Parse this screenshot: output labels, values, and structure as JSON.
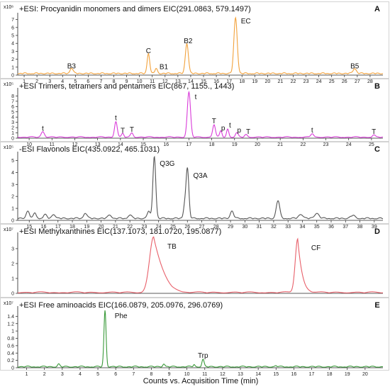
{
  "figure": {
    "xlabel": "Counts vs. Acquisition Time (min)"
  },
  "chart_data": [
    {
      "id": "A",
      "type": "line",
      "panel_letter": "A",
      "title": "+ESI: Procyanidin monomers and dimers   EIC(291.0863, 579.1497)",
      "exp_label": "x10⁶",
      "color": "#f2a23c",
      "xlim": [
        0.5,
        29
      ],
      "x_ticks": [
        1,
        2,
        3,
        4,
        5,
        6,
        7,
        8,
        9,
        10,
        11,
        12,
        13,
        14,
        15,
        16,
        17,
        18,
        19,
        20,
        21,
        22,
        23,
        24,
        25,
        26,
        27,
        28
      ],
      "ylim": [
        0,
        7.5
      ],
      "y_ticks": [
        0,
        1,
        2,
        3,
        4,
        5,
        6,
        7
      ],
      "baseline": 0.15,
      "peaks": [
        {
          "x": 4.7,
          "y": 0.7,
          "w": 0.12
        },
        {
          "x": 10.7,
          "y": 2.55,
          "w": 0.1
        },
        {
          "x": 11.3,
          "y": 0.6,
          "w": 0.1
        },
        {
          "x": 13.7,
          "y": 3.8,
          "w": 0.12
        },
        {
          "x": 17.5,
          "y": 7.0,
          "w": 0.13
        },
        {
          "x": 26.8,
          "y": 0.65,
          "w": 0.13
        }
      ],
      "annotations": [
        {
          "text": "B3",
          "x": 4.7,
          "y": 0.85
        },
        {
          "text": "C",
          "x": 10.7,
          "y": 2.75
        },
        {
          "text": "B1",
          "x": 11.9,
          "y": 0.75
        },
        {
          "text": "B2",
          "x": 13.8,
          "y": 4.0
        },
        {
          "text": "EC",
          "x": 18.3,
          "y": 6.5
        },
        {
          "text": "B5",
          "x": 26.8,
          "y": 0.85
        }
      ]
    },
    {
      "id": "B",
      "type": "line",
      "panel_letter": "B",
      "title": "+ESI Trimers, tetramers and pentamers EIC(867, 1155., 1443)",
      "exp_label": "x10⁵",
      "color": "#d93cd9",
      "xlim": [
        9.5,
        25.5
      ],
      "x_ticks": [
        10,
        11,
        12,
        13,
        14,
        15,
        16,
        17,
        18,
        19,
        20,
        21,
        22,
        23,
        24,
        25
      ],
      "ylim": [
        0,
        9
      ],
      "y_ticks": [
        0,
        1,
        2,
        3,
        4,
        5,
        6,
        7,
        8
      ],
      "baseline": 0.12,
      "peaks": [
        {
          "x": 10.6,
          "y": 1.1,
          "w": 0.07
        },
        {
          "x": 13.8,
          "y": 3.0,
          "w": 0.06
        },
        {
          "x": 14.1,
          "y": 0.7,
          "w": 0.05
        },
        {
          "x": 14.5,
          "y": 0.8,
          "w": 0.06
        },
        {
          "x": 17.0,
          "y": 8.5,
          "w": 0.07
        },
        {
          "x": 18.1,
          "y": 2.4,
          "w": 0.06
        },
        {
          "x": 18.4,
          "y": 1.2,
          "w": 0.05
        },
        {
          "x": 18.7,
          "y": 1.6,
          "w": 0.05
        },
        {
          "x": 19.1,
          "y": 0.8,
          "w": 0.06
        },
        {
          "x": 19.5,
          "y": 0.5,
          "w": 0.06
        },
        {
          "x": 22.4,
          "y": 0.7,
          "w": 0.06
        },
        {
          "x": 25.1,
          "y": 0.4,
          "w": 0.06
        }
      ],
      "annotations": [
        {
          "text": "t",
          "x": 10.6,
          "y": 1.4
        },
        {
          "text": "t",
          "x": 13.8,
          "y": 3.4
        },
        {
          "text": "T",
          "x": 14.1,
          "y": 1.0
        },
        {
          "text": "T",
          "x": 14.5,
          "y": 1.2
        },
        {
          "text": "t",
          "x": 17.3,
          "y": 7.4
        },
        {
          "text": "T",
          "x": 18.1,
          "y": 2.8
        },
        {
          "text": "p",
          "x": 18.5,
          "y": 1.5
        },
        {
          "text": "t",
          "x": 18.8,
          "y": 2.0
        },
        {
          "text": "p",
          "x": 19.2,
          "y": 1.1
        },
        {
          "text": "T",
          "x": 19.6,
          "y": 0.8
        },
        {
          "text": "t",
          "x": 22.4,
          "y": 1.1
        },
        {
          "text": "T",
          "x": 25.1,
          "y": 0.8
        }
      ]
    },
    {
      "id": "C",
      "type": "line",
      "panel_letter": "C",
      "title": "-ESI Flavonols EIC(435.0922, 465.1031)",
      "exp_label": "x10⁵",
      "color": "#555555",
      "xlim": [
        14.2,
        39.6
      ],
      "x_ticks": [
        15,
        16,
        17,
        18,
        19,
        20,
        21,
        22,
        23,
        24,
        25,
        26,
        27,
        28,
        29,
        30,
        31,
        32,
        33,
        34,
        35,
        36,
        37,
        38,
        39
      ],
      "ylim": [
        0,
        5.5
      ],
      "y_ticks": [
        0,
        1,
        2,
        3,
        4,
        5
      ],
      "baseline": 0.12,
      "peaks": [
        {
          "x": 14.9,
          "y": 0.6,
          "w": 0.12
        },
        {
          "x": 15.4,
          "y": 0.45,
          "w": 0.1
        },
        {
          "x": 16.1,
          "y": 0.3,
          "w": 0.12
        },
        {
          "x": 16.7,
          "y": 0.35,
          "w": 0.12
        },
        {
          "x": 18.9,
          "y": 0.45,
          "w": 0.12
        },
        {
          "x": 20.6,
          "y": 0.3,
          "w": 0.12
        },
        {
          "x": 22.0,
          "y": 0.3,
          "w": 0.12
        },
        {
          "x": 23.3,
          "y": 0.6,
          "w": 0.1
        },
        {
          "x": 23.7,
          "y": 5.2,
          "w": 0.1
        },
        {
          "x": 25.8,
          "y": 0.9,
          "w": 0.08
        },
        {
          "x": 26.0,
          "y": 4.2,
          "w": 0.1
        },
        {
          "x": 29.1,
          "y": 0.6,
          "w": 0.12
        },
        {
          "x": 32.3,
          "y": 1.5,
          "w": 0.12
        },
        {
          "x": 33.9,
          "y": 0.35,
          "w": 0.15
        },
        {
          "x": 35.0,
          "y": 0.45,
          "w": 0.15
        },
        {
          "x": 37.5,
          "y": 0.25,
          "w": 0.15
        }
      ],
      "annotations": [
        {
          "text": "Q3G",
          "x": 24.6,
          "y": 4.55
        },
        {
          "text": "Q3A",
          "x": 26.9,
          "y": 3.55
        }
      ]
    },
    {
      "id": "D",
      "type": "line",
      "panel_letter": "D",
      "title": "+ESI Methylxanthines   EIC(137.1073, 181.0720, 195.0877)",
      "exp_label": "x10⁷",
      "color": "#e8606a",
      "xlim": [
        0.5,
        9.5
      ],
      "x_ticks": [],
      "ylim": [
        0,
        3.9
      ],
      "y_ticks": [
        0,
        1,
        2,
        3
      ],
      "baseline": 0.03,
      "peaks": [
        {
          "x": 3.85,
          "y": 3.75,
          "w": 0.1,
          "tail": 0.3
        },
        {
          "x": 7.4,
          "y": 3.6,
          "w": 0.06,
          "tail": 0.12
        }
      ],
      "annotations": [
        {
          "text": "TB",
          "x": 4.3,
          "y": 3.0
        },
        {
          "text": "CF",
          "x": 7.85,
          "y": 2.9
        }
      ]
    },
    {
      "id": "E",
      "type": "line",
      "panel_letter": "E",
      "title": "+ESI Free aminoacids   EIC(166.0879, 205.0976, 296.0769)",
      "exp_label": "x10⁷",
      "color": "#3a9a3a",
      "xlim": [
        0.5,
        21
      ],
      "x_ticks": [
        1,
        2,
        3,
        4,
        5,
        6,
        7,
        8,
        9,
        10,
        11,
        12,
        13,
        14,
        15,
        16,
        17,
        18,
        19,
        20
      ],
      "ylim": [
        0,
        1.6
      ],
      "y_ticks": [
        0,
        0.2,
        0.4,
        0.6,
        0.8,
        1,
        1.2,
        1.4
      ],
      "y_tick_labels": [
        "0",
        "0.2",
        "0.4",
        "0.6",
        "0.8",
        "1",
        "1.2",
        "1.4"
      ],
      "baseline": 0.015,
      "peaks": [
        {
          "x": 2.8,
          "y": 0.07,
          "w": 0.06
        },
        {
          "x": 5.4,
          "y": 1.53,
          "w": 0.06
        },
        {
          "x": 8.7,
          "y": 0.08,
          "w": 0.06
        },
        {
          "x": 10.4,
          "y": 0.06,
          "w": 0.05
        },
        {
          "x": 10.9,
          "y": 0.2,
          "w": 0.06
        },
        {
          "x": 15.0,
          "y": 0.03,
          "w": 0.06
        }
      ],
      "annotations": [
        {
          "text": "Phe",
          "x": 6.3,
          "y": 1.35
        },
        {
          "text": "Trp",
          "x": 10.9,
          "y": 0.27
        }
      ]
    }
  ]
}
